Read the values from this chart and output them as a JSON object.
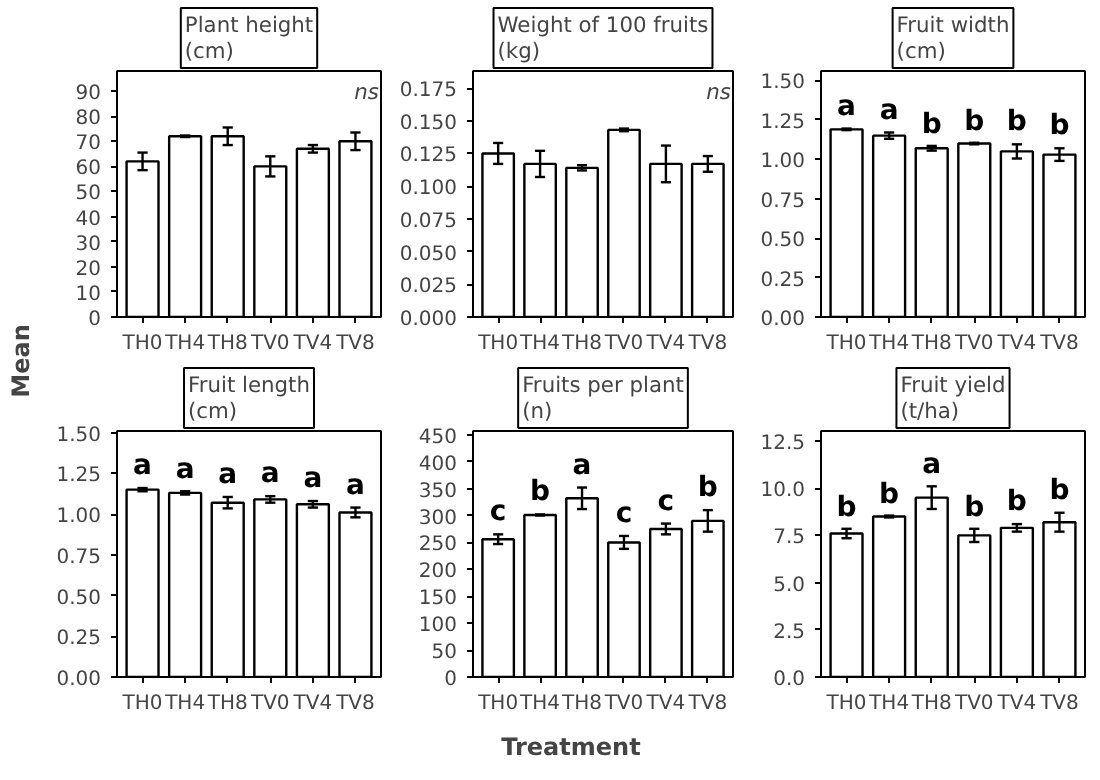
{
  "chart_data": [
    {
      "type": "bar",
      "title": "Plant height\n(cm)",
      "ylabel": "Mean",
      "categories": [
        "TH0",
        "TH4",
        "TH8",
        "TV0",
        "TV4",
        "TV8"
      ],
      "color": "#ffffff",
      "values": [
        62,
        72,
        72,
        60,
        67,
        70
      ],
      "errors": [
        3.5,
        0.3,
        3.5,
        4,
        1.5,
        3.5
      ],
      "ylim": [
        0,
        98
      ],
      "yticks": [
        0,
        10,
        20,
        30,
        40,
        50,
        60,
        70,
        80,
        90
      ],
      "annotations": [
        "ns"
      ]
    },
    {
      "type": "bar",
      "title": "Weight of 100 fruits\n(kg)",
      "categories": [
        "TH0",
        "TH4",
        "TH8",
        "TV0",
        "TV4",
        "TV8"
      ],
      "color": "#ffffff",
      "values": [
        0.125,
        0.117,
        0.114,
        0.143,
        0.117,
        0.117
      ],
      "errors": [
        0.008,
        0.01,
        0.002,
        0.001,
        0.014,
        0.006
      ],
      "ylim": [
        0,
        0.188
      ],
      "yticks": [
        {
          "value": 0,
          "label": "0.000"
        },
        {
          "value": 0.025,
          "label": "0.025"
        },
        {
          "value": 0.05,
          "label": "0.050"
        },
        {
          "value": 0.075,
          "label": "0.075"
        },
        {
          "value": 0.1,
          "label": "0.100"
        },
        {
          "value": 0.125,
          "label": "0.125"
        },
        {
          "value": 0.15,
          "label": "0.150"
        },
        {
          "value": 0.175,
          "label": "0.175"
        }
      ],
      "annotations": [
        "ns"
      ]
    },
    {
      "type": "bar",
      "title": "Fruit width\n(cm)",
      "categories": [
        "TH0",
        "TH4",
        "TH8",
        "TV0",
        "TV4",
        "TV8"
      ],
      "color": "#ffffff",
      "values": [
        1.19,
        1.15,
        1.07,
        1.1,
        1.05,
        1.03
      ],
      "errors": [
        0.005,
        0.02,
        0.015,
        0.005,
        0.045,
        0.04
      ],
      "ylim": [
        0,
        1.56
      ],
      "yticks": [
        {
          "value": 0,
          "label": "0.00"
        },
        {
          "value": 0.25,
          "label": "0.25"
        },
        {
          "value": 0.5,
          "label": "0.50"
        },
        {
          "value": 0.75,
          "label": "0.75"
        },
        {
          "value": 1,
          "label": "1.00"
        },
        {
          "value": 1.25,
          "label": "1.25"
        },
        {
          "value": 1.5,
          "label": "1.50"
        }
      ],
      "annotations": [
        {
          "text": "a",
          "x": "TH0",
          "y": 1.195
        },
        {
          "text": "a",
          "x": "TH4",
          "y": 1.17
        },
        {
          "text": "b",
          "x": "TH8",
          "y": 1.08
        },
        {
          "text": "b",
          "x": "TV0",
          "y": 1.1
        },
        {
          "text": "b",
          "x": "TV4",
          "y": 1.1
        },
        {
          "text": "b",
          "x": "TV8",
          "y": 1.07
        }
      ]
    },
    {
      "type": "bar",
      "title": "Fruit length\n(cm)",
      "categories": [
        "TH0",
        "TH4",
        "TH8",
        "TV0",
        "TV4",
        "TV8"
      ],
      "color": "#ffffff",
      "values": [
        1.15,
        1.13,
        1.07,
        1.09,
        1.06,
        1.01
      ],
      "errors": [
        0.01,
        0.01,
        0.035,
        0.02,
        0.02,
        0.03
      ],
      "ylim": [
        0,
        1.51
      ],
      "yticks": [
        {
          "value": 0,
          "label": "0.00"
        },
        {
          "value": 0.25,
          "label": "0.25"
        },
        {
          "value": 0.5,
          "label": "0.50"
        },
        {
          "value": 0.75,
          "label": "0.75"
        },
        {
          "value": 1,
          "label": "1.00"
        },
        {
          "value": 1.25,
          "label": "1.25"
        },
        {
          "value": 1.5,
          "label": "1.50"
        }
      ],
      "annotations": [
        {
          "text": "a",
          "x": "TH0",
          "y": 1.16
        },
        {
          "text": "a",
          "x": "TH4",
          "y": 1.135
        },
        {
          "text": "a",
          "x": "TH8",
          "y": 1.105
        },
        {
          "text": "a",
          "x": "TV0",
          "y": 1.11
        },
        {
          "text": "a",
          "x": "TV4",
          "y": 1.08
        },
        {
          "text": "a",
          "x": "TV8",
          "y": 1.035
        }
      ]
    },
    {
      "type": "bar",
      "title": "Fruits per plant\n(n)",
      "xlabel": "Treatment",
      "categories": [
        "TH0",
        "TH4",
        "TH8",
        "TV0",
        "TV4",
        "TV8"
      ],
      "color": "#ffffff",
      "values": [
        256,
        301,
        332,
        250,
        275,
        290
      ],
      "errors": [
        9,
        1,
        20,
        12,
        10,
        20
      ],
      "ylim": [
        0,
        457
      ],
      "yticks": [
        0,
        50,
        100,
        150,
        200,
        250,
        300,
        350,
        400,
        450
      ],
      "annotations": [
        {
          "text": "c",
          "x": "TH0",
          "y": 265
        },
        {
          "text": "b",
          "x": "TH4",
          "y": 302
        },
        {
          "text": "a",
          "x": "TH8",
          "y": 352
        },
        {
          "text": "c",
          "x": "TV0",
          "y": 262
        },
        {
          "text": "c",
          "x": "TV4",
          "y": 285
        },
        {
          "text": "b",
          "x": "TV8",
          "y": 310
        }
      ]
    },
    {
      "type": "bar",
      "title": "Fruit yield\n(t/ha)",
      "categories": [
        "TH0",
        "TH4",
        "TH8",
        "TV0",
        "TV4",
        "TV8"
      ],
      "color": "#ffffff",
      "values": [
        7.6,
        8.5,
        9.5,
        7.5,
        7.9,
        8.2
      ],
      "errors": [
        0.25,
        0.05,
        0.6,
        0.35,
        0.2,
        0.5
      ],
      "ylim": [
        0,
        13.03
      ],
      "yticks": [
        {
          "value": 0,
          "label": "0.0"
        },
        {
          "value": 2.5,
          "label": "2.5"
        },
        {
          "value": 5,
          "label": "5.0"
        },
        {
          "value": 7.5,
          "label": "7.5"
        },
        {
          "value": 10,
          "label": "10.0"
        },
        {
          "value": 12.5,
          "label": "12.5"
        }
      ],
      "annotations": [
        {
          "text": "b",
          "x": "TH0",
          "y": 7.8
        },
        {
          "text": "b",
          "x": "TH4",
          "y": 8.5
        },
        {
          "text": "a",
          "x": "TH8",
          "y": 10.05
        },
        {
          "text": "b",
          "x": "TV0",
          "y": 7.8
        },
        {
          "text": "b",
          "x": "TV4",
          "y": 8.1
        },
        {
          "text": "b",
          "x": "TV8",
          "y": 8.7
        }
      ]
    }
  ]
}
